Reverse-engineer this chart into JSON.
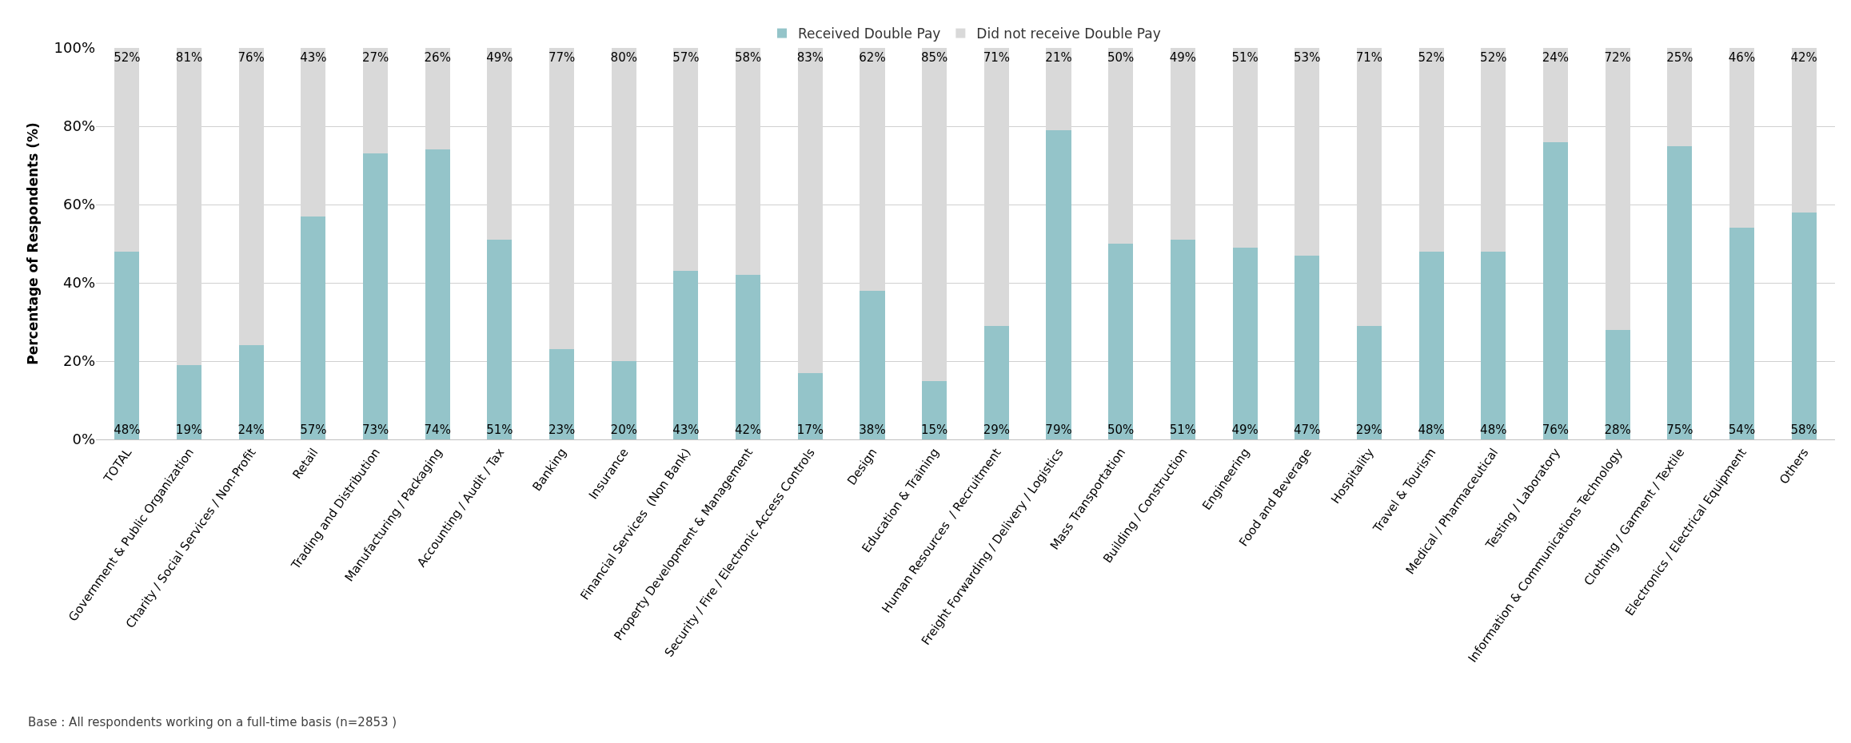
{
  "chart_data": {
    "type": "bar",
    "stacked": true,
    "ylabel": "Percentage of Respondents (%)",
    "categories": [
      "TOTAL",
      "Government & Public Organization",
      "Charity / Social Services / Non-Profit",
      "Retail",
      "Trading and Distribution",
      "Manufacturing / Packaging",
      "Accounting / Audit / Tax",
      "Banking",
      "Insurance",
      "Financial Services  (Non Bank)",
      "Property Development & Management",
      "Security / Fire / Electronic Access Controls",
      "Design",
      "Education & Training",
      "Human Resources  / Recruitment",
      "Freight Forwarding / Delivery / Logistics",
      "Mass Transportation",
      "Building / Construction",
      "Engineering",
      "Food and Beverage",
      "Hospitality",
      "Travel & Tourism",
      "Medical / Pharmaceutical",
      "Testing / Laboratory",
      "Information & Communications Technology",
      "Clothing / Garment / Textile",
      "Electronics / Electrical Equipment",
      "Others"
    ],
    "series": [
      {
        "name": "Received Double Pay",
        "color": "#94c4c9",
        "values": [
          48,
          19,
          24,
          57,
          73,
          74,
          51,
          23,
          20,
          43,
          42,
          17,
          38,
          15,
          29,
          79,
          50,
          51,
          49,
          47,
          29,
          48,
          48,
          76,
          28,
          75,
          54,
          58
        ],
        "value_labels": [
          "48%",
          "19%",
          "24%",
          "57%",
          "73%",
          "74%",
          "51%",
          "23%",
          "20%",
          "43%",
          "42%",
          "17%",
          "38%",
          "15%",
          "29%",
          "79%",
          "50%",
          "51%",
          "49%",
          "47%",
          "29%",
          "48%",
          "48%",
          "76%",
          "28%",
          "75%",
          "54%",
          "58%"
        ]
      },
      {
        "name": "Did not receive Double Pay",
        "color": "#d9d9d9",
        "values": [
          52,
          81,
          76,
          43,
          27,
          26,
          49,
          77,
          80,
          57,
          58,
          83,
          62,
          85,
          71,
          21,
          50,
          49,
          51,
          53,
          71,
          52,
          52,
          24,
          72,
          25,
          46,
          42
        ],
        "value_labels": [
          "52%",
          "81%",
          "76%",
          "43%",
          "27%",
          "26%",
          "49%",
          "77%",
          "80%",
          "57%",
          "58%",
          "83%",
          "62%",
          "85%",
          "71%",
          "21%",
          "50%",
          "49%",
          "51%",
          "53%",
          "71%",
          "52%",
          "52%",
          "24%",
          "72%",
          "25%",
          "46%",
          "42%"
        ]
      }
    ],
    "ylim": [
      0,
      100
    ],
    "yticks": [
      {
        "value": 0,
        "label": "0%"
      },
      {
        "value": 20,
        "label": "20%"
      },
      {
        "value": 40,
        "label": "40%"
      },
      {
        "value": 60,
        "label": "60%"
      },
      {
        "value": 80,
        "label": "80%"
      },
      {
        "value": 100,
        "label": "100%"
      }
    ],
    "grid": "y",
    "legend": "top",
    "annotations": [
      "Base : All respondents working on a full-time basis (n=2853 )"
    ]
  }
}
